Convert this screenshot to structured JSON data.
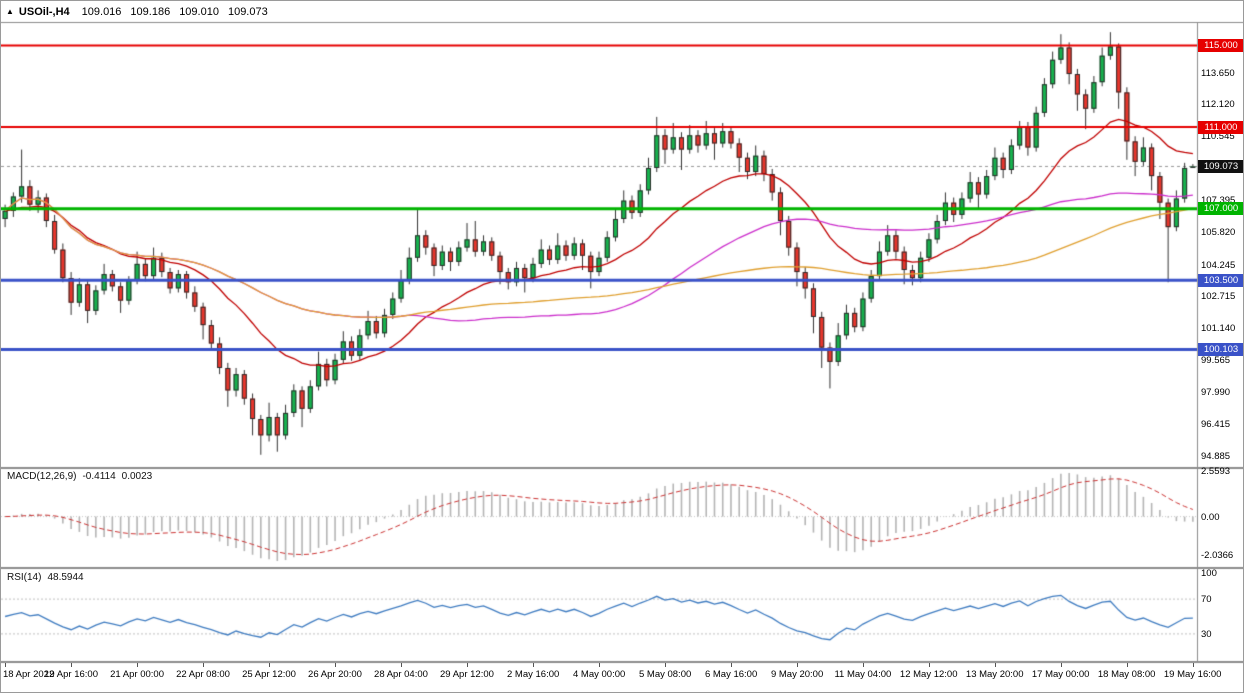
{
  "header": {
    "icon": "▲",
    "symbol_period": "USOil-,H4",
    "ohlc": {
      "open": "109.016",
      "high": "109.186",
      "low": "109.010",
      "close": "109.073"
    }
  },
  "main_chart": {
    "price_axis_labels": [
      "113.650",
      "112.120",
      "110.545",
      "107.395",
      "105.820",
      "104.245",
      "102.715",
      "101.140",
      "99.565",
      "97.990",
      "96.415",
      "94.885"
    ],
    "current_price": {
      "value": 109.073,
      "label": "109.073",
      "badge_color": "#111111",
      "line_color": "#999999"
    },
    "levels": [
      {
        "price": 115.0,
        "label": "115.000",
        "color": "#e60000",
        "width": 2
      },
      {
        "price": 111.0,
        "label": "111.000",
        "color": "#e60000",
        "width": 2
      },
      {
        "price": 107.0,
        "label": "107.000",
        "color": "#00b400",
        "width": 3
      },
      {
        "price": 103.5,
        "label": "103.500",
        "color": "#3a52c8",
        "width": 3
      },
      {
        "price": 100.103,
        "label": "100.103",
        "color": "#3a52c8",
        "width": 3
      }
    ]
  },
  "macd_pane": {
    "label": "MACD(12,26,9)",
    "value": "-0.4114",
    "signal": "0.0023",
    "axis_labels": [
      {
        "text": "2.5593",
        "value": 2.5593
      },
      {
        "text": "0.00",
        "value": 0
      },
      {
        "text": "-2.0366",
        "value": -2.0366
      }
    ],
    "histogram_color": "#b5b5b5",
    "signal_color": "#cc3333"
  },
  "rsi_pane": {
    "label": "RSI(14)",
    "value": "48.5944",
    "axis_labels": [
      {
        "text": "100",
        "value": 100
      },
      {
        "text": "70",
        "value": 70
      },
      {
        "text": "30",
        "value": 30
      }
    ],
    "levels": [
      70,
      30
    ],
    "line_color": "#3f7cc1"
  },
  "time_axis": {
    "labels": [
      {
        "text": "18 Apr 2022",
        "bar": 0
      },
      {
        "text": "19 Apr 16:00",
        "bar": 8
      },
      {
        "text": "21 Apr 00:00",
        "bar": 16
      },
      {
        "text": "22 Apr 08:00",
        "bar": 24
      },
      {
        "text": "25 Apr 12:00",
        "bar": 32
      },
      {
        "text": "26 Apr 20:00",
        "bar": 40
      },
      {
        "text": "28 Apr 04:00",
        "bar": 48
      },
      {
        "text": "29 Apr 12:00",
        "bar": 56
      },
      {
        "text": "2 May 16:00",
        "bar": 64
      },
      {
        "text": "4 May 00:00",
        "bar": 72
      },
      {
        "text": "5 May 08:00",
        "bar": 80
      },
      {
        "text": "6 May 16:00",
        "bar": 88
      },
      {
        "text": "9 May 20:00",
        "bar": 96
      },
      {
        "text": "11 May 04:00",
        "bar": 104
      },
      {
        "text": "12 May 12:00",
        "bar": 112
      },
      {
        "text": "13 May 20:00",
        "bar": 120
      },
      {
        "text": "17 May 00:00",
        "bar": 128
      },
      {
        "text": "18 May 08:00",
        "bar": 136
      },
      {
        "text": "19 May 16:00",
        "bar": 144
      }
    ]
  },
  "chart_data": {
    "type": "candlestick",
    "title": "USOil- H4",
    "y_range": [
      94.35,
      116.1
    ],
    "up_color": "#17b24e",
    "down_color": "#e8362d",
    "wick_color": "#333333",
    "body_border_color": "#2b2b2b",
    "moving_averages": [
      {
        "name": "ema-21",
        "type": "ema",
        "period": 21,
        "color": "#c00000"
      },
      {
        "name": "sma-50",
        "type": "sma",
        "period": 50,
        "color": "#cc2ecc"
      },
      {
        "name": "sma-100",
        "type": "sma",
        "period": 100,
        "color": "#e0a030"
      }
    ],
    "candles": [
      [
        106.5,
        107.2,
        106.1,
        106.9
      ],
      [
        106.9,
        107.8,
        106.6,
        107.6
      ],
      [
        107.6,
        109.9,
        107.3,
        108.1
      ],
      [
        108.1,
        108.4,
        106.9,
        107.2
      ],
      [
        107.2,
        107.9,
        106.8,
        107.55
      ],
      [
        107.55,
        107.75,
        106.1,
        106.4
      ],
      [
        106.4,
        106.7,
        104.8,
        105.0
      ],
      [
        105.0,
        105.3,
        103.4,
        103.6
      ],
      [
        103.6,
        103.9,
        101.8,
        102.4
      ],
      [
        102.4,
        103.6,
        102.2,
        103.3
      ],
      [
        103.3,
        103.45,
        101.4,
        102.0
      ],
      [
        102.0,
        103.25,
        101.8,
        103.0
      ],
      [
        103.0,
        104.3,
        102.8,
        103.8
      ],
      [
        103.8,
        104.0,
        102.95,
        103.2
      ],
      [
        103.2,
        103.4,
        101.9,
        102.5
      ],
      [
        102.5,
        103.7,
        102.3,
        103.5
      ],
      [
        103.5,
        104.9,
        103.3,
        104.3
      ],
      [
        104.3,
        104.55,
        103.45,
        103.7
      ],
      [
        103.7,
        105.1,
        103.5,
        104.6
      ],
      [
        104.6,
        104.85,
        103.65,
        103.9
      ],
      [
        103.9,
        104.1,
        102.85,
        103.1
      ],
      [
        103.1,
        104.0,
        102.9,
        103.8
      ],
      [
        103.8,
        103.95,
        102.6,
        102.9
      ],
      [
        102.9,
        103.2,
        101.95,
        102.2
      ],
      [
        102.2,
        102.4,
        100.6,
        101.3
      ],
      [
        101.3,
        101.55,
        100.1,
        100.4
      ],
      [
        100.4,
        100.7,
        98.9,
        99.2
      ],
      [
        99.2,
        99.45,
        97.3,
        98.1
      ],
      [
        98.1,
        99.2,
        97.8,
        98.9
      ],
      [
        98.9,
        99.1,
        97.4,
        97.7
      ],
      [
        97.7,
        97.95,
        95.9,
        96.7
      ],
      [
        96.7,
        96.9,
        94.95,
        95.9
      ],
      [
        95.9,
        97.5,
        95.6,
        96.8
      ],
      [
        96.8,
        97.0,
        95.1,
        95.9
      ],
      [
        95.9,
        97.4,
        95.7,
        97.0
      ],
      [
        97.0,
        98.4,
        96.8,
        98.1
      ],
      [
        98.1,
        98.3,
        96.3,
        97.2
      ],
      [
        97.2,
        98.6,
        97.0,
        98.3
      ],
      [
        98.3,
        100.0,
        98.1,
        99.4
      ],
      [
        99.4,
        99.65,
        98.3,
        98.6
      ],
      [
        98.6,
        99.9,
        98.4,
        99.6
      ],
      [
        99.6,
        101.0,
        99.4,
        100.5
      ],
      [
        100.5,
        100.75,
        99.55,
        99.8
      ],
      [
        99.8,
        101.1,
        99.6,
        100.8
      ],
      [
        100.8,
        102.0,
        100.6,
        101.5
      ],
      [
        101.5,
        101.75,
        100.65,
        100.9
      ],
      [
        100.9,
        102.1,
        100.7,
        101.8
      ],
      [
        101.8,
        102.9,
        101.6,
        102.6
      ],
      [
        102.6,
        104.0,
        102.4,
        103.5
      ],
      [
        103.5,
        105.1,
        103.3,
        104.6
      ],
      [
        104.6,
        107.0,
        104.4,
        105.7
      ],
      [
        105.7,
        105.95,
        104.75,
        105.1
      ],
      [
        105.1,
        105.3,
        103.7,
        104.2
      ],
      [
        104.2,
        105.2,
        104.0,
        104.9
      ],
      [
        104.9,
        105.1,
        103.95,
        104.4
      ],
      [
        104.4,
        105.4,
        104.2,
        105.1
      ],
      [
        105.1,
        106.3,
        104.9,
        105.5
      ],
      [
        105.5,
        106.4,
        104.65,
        104.9
      ],
      [
        104.9,
        105.7,
        104.7,
        105.4
      ],
      [
        105.4,
        105.6,
        104.45,
        104.7
      ],
      [
        104.7,
        104.9,
        103.3,
        103.9
      ],
      [
        103.9,
        104.1,
        103.05,
        103.4
      ],
      [
        103.4,
        104.4,
        103.2,
        104.1
      ],
      [
        104.1,
        104.3,
        102.9,
        103.6
      ],
      [
        103.6,
        104.6,
        103.4,
        104.3
      ],
      [
        104.3,
        105.5,
        104.1,
        105.0
      ],
      [
        105.0,
        105.2,
        104.25,
        104.5
      ],
      [
        104.5,
        105.8,
        104.3,
        105.2
      ],
      [
        105.2,
        105.45,
        104.45,
        104.7
      ],
      [
        104.7,
        105.6,
        104.5,
        105.3
      ],
      [
        105.3,
        105.5,
        104.0,
        104.7
      ],
      [
        104.7,
        104.9,
        103.1,
        103.9
      ],
      [
        103.9,
        104.9,
        103.7,
        104.6
      ],
      [
        104.6,
        105.9,
        104.4,
        105.6
      ],
      [
        105.6,
        107.0,
        105.4,
        106.5
      ],
      [
        106.5,
        107.9,
        106.3,
        107.4
      ],
      [
        107.4,
        107.65,
        106.5,
        106.8
      ],
      [
        106.8,
        108.2,
        106.6,
        107.9
      ],
      [
        107.9,
        109.5,
        107.7,
        109.0
      ],
      [
        109.0,
        111.5,
        108.8,
        110.6
      ],
      [
        110.6,
        110.9,
        109.2,
        109.9
      ],
      [
        109.9,
        111.2,
        109.7,
        110.5
      ],
      [
        110.5,
        110.75,
        108.9,
        109.9
      ],
      [
        109.9,
        111.1,
        109.7,
        110.6
      ],
      [
        110.6,
        110.85,
        109.75,
        110.1
      ],
      [
        110.1,
        111.3,
        109.9,
        110.7
      ],
      [
        110.7,
        110.95,
        109.4,
        110.2
      ],
      [
        110.2,
        111.2,
        110.0,
        110.8
      ],
      [
        110.8,
        111.0,
        109.95,
        110.2
      ],
      [
        110.2,
        110.45,
        108.8,
        109.5
      ],
      [
        109.5,
        109.75,
        108.45,
        108.8
      ],
      [
        108.8,
        110.1,
        108.6,
        109.6
      ],
      [
        109.6,
        109.85,
        108.35,
        108.7
      ],
      [
        108.7,
        108.95,
        107.4,
        107.8
      ],
      [
        107.8,
        108.05,
        105.7,
        106.4
      ],
      [
        106.4,
        106.65,
        104.7,
        105.1
      ],
      [
        105.1,
        105.35,
        103.2,
        103.9
      ],
      [
        103.9,
        104.15,
        102.6,
        103.1
      ],
      [
        103.1,
        103.35,
        100.9,
        101.7
      ],
      [
        101.7,
        101.95,
        99.2,
        100.2
      ],
      [
        100.2,
        100.45,
        98.2,
        99.5
      ],
      [
        99.5,
        101.4,
        99.3,
        100.8
      ],
      [
        100.8,
        102.3,
        100.6,
        101.9
      ],
      [
        101.9,
        102.15,
        100.95,
        101.2
      ],
      [
        101.2,
        102.9,
        101.0,
        102.6
      ],
      [
        102.6,
        104.0,
        102.4,
        103.7
      ],
      [
        103.7,
        105.4,
        103.5,
        104.9
      ],
      [
        104.9,
        106.2,
        104.7,
        105.7
      ],
      [
        105.7,
        105.95,
        104.55,
        104.9
      ],
      [
        104.9,
        105.15,
        103.3,
        104.0
      ],
      [
        104.0,
        104.25,
        103.25,
        103.6
      ],
      [
        103.6,
        104.9,
        103.4,
        104.6
      ],
      [
        104.6,
        105.8,
        104.4,
        105.5
      ],
      [
        105.5,
        106.7,
        105.3,
        106.4
      ],
      [
        106.4,
        107.8,
        106.2,
        107.3
      ],
      [
        107.3,
        107.55,
        106.35,
        106.7
      ],
      [
        106.7,
        107.8,
        106.5,
        107.5
      ],
      [
        107.5,
        108.8,
        107.3,
        108.3
      ],
      [
        108.3,
        108.55,
        107.0,
        107.7
      ],
      [
        107.7,
        108.9,
        107.5,
        108.6
      ],
      [
        108.6,
        110.0,
        108.4,
        109.5
      ],
      [
        109.5,
        109.75,
        108.5,
        108.9
      ],
      [
        108.9,
        110.4,
        108.7,
        110.1
      ],
      [
        110.1,
        111.3,
        109.9,
        111.0
      ],
      [
        111.0,
        111.25,
        109.6,
        110.0
      ],
      [
        110.0,
        112.0,
        109.8,
        111.7
      ],
      [
        111.7,
        113.4,
        111.5,
        113.1
      ],
      [
        113.1,
        114.7,
        112.9,
        114.3
      ],
      [
        114.3,
        115.55,
        114.1,
        114.9
      ],
      [
        114.9,
        115.15,
        113.1,
        113.6
      ],
      [
        113.6,
        113.85,
        111.8,
        112.6
      ],
      [
        112.6,
        112.85,
        110.9,
        111.9
      ],
      [
        111.9,
        113.5,
        111.7,
        113.2
      ],
      [
        113.2,
        114.9,
        113.0,
        114.5
      ],
      [
        114.5,
        115.65,
        114.3,
        114.95
      ],
      [
        114.95,
        115.1,
        111.9,
        112.7
      ],
      [
        112.7,
        112.95,
        109.4,
        110.3
      ],
      [
        110.3,
        110.55,
        108.6,
        109.3
      ],
      [
        109.3,
        110.5,
        109.1,
        110.0
      ],
      [
        110.0,
        110.2,
        107.9,
        108.6
      ],
      [
        108.6,
        108.8,
        106.5,
        107.3
      ],
      [
        107.3,
        107.5,
        103.4,
        106.1
      ],
      [
        106.1,
        107.9,
        105.9,
        107.5
      ],
      [
        107.5,
        109.25,
        107.3,
        109.0
      ],
      [
        109.016,
        109.186,
        109.01,
        109.073
      ]
    ]
  }
}
